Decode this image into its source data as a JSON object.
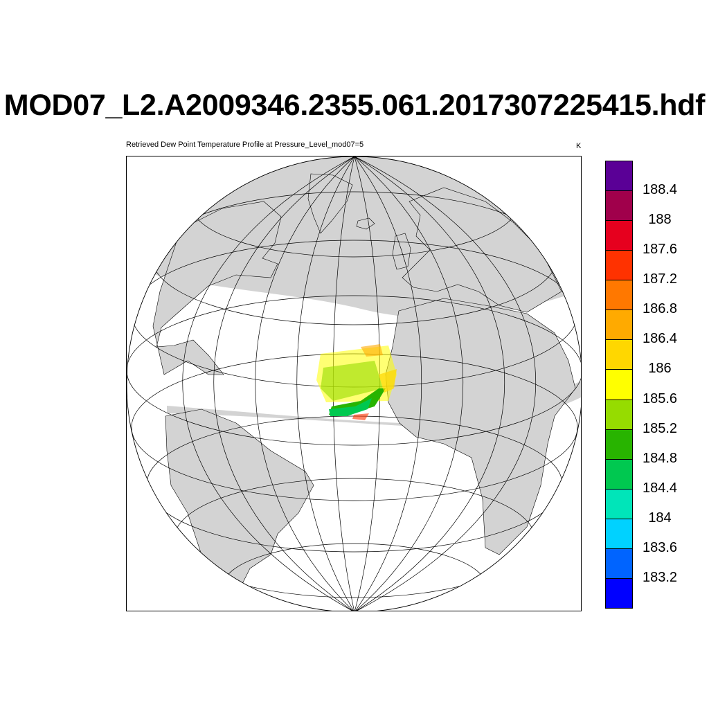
{
  "title": "MOD07_L2.A2009346.2355.061.2017307225415.hdf",
  "subtitle": "Retrieved Dew Point Temperature Profile at Pressure_Level_mod07=5",
  "unit": "K",
  "colorbar": {
    "colors": [
      "#0000ff",
      "#0064ff",
      "#00d2ff",
      "#00e5b9",
      "#00c850",
      "#28b400",
      "#96dc00",
      "#ffff00",
      "#ffd700",
      "#ffaa00",
      "#ff7800",
      "#ff3200",
      "#e6001e",
      "#a0004b",
      "#5a0096"
    ],
    "labels": [
      "183.2",
      "183.6",
      "184",
      "184.4",
      "184.8",
      "185.2",
      "185.6",
      "186",
      "186.4",
      "186.8",
      "187.2",
      "187.6",
      "188",
      "188.4"
    ]
  },
  "map": {
    "projection": "orthographic",
    "land_color": "#d3d3d3",
    "ocean_color": "#ffffff",
    "graticule_color": "#000000"
  }
}
